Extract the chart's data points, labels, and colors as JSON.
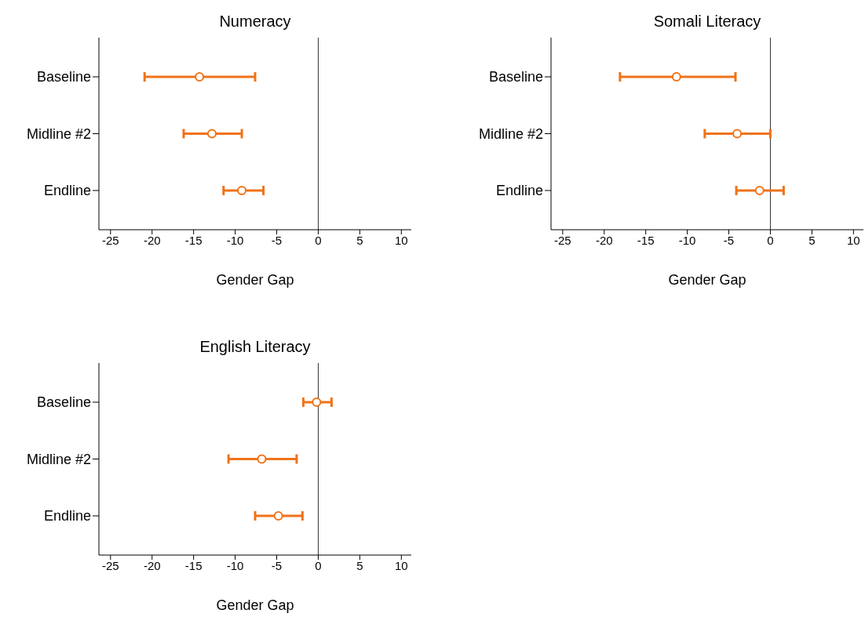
{
  "chart_data": [
    {
      "type": "scatter",
      "title": "Numeracy",
      "xlabel": "Gender Gap",
      "orientation": "horizontal",
      "categories": [
        "Baseline",
        "Midline #2",
        "Endline"
      ],
      "marker": "circle",
      "grid": false,
      "color": "#f07318",
      "values": [
        -14.3,
        -12.8,
        -9.2
      ],
      "errors": [
        [
          -20.9,
          -7.6
        ],
        [
          -16.2,
          -9.2
        ],
        [
          -11.4,
          -6.6
        ]
      ],
      "xlim": [
        -26.4,
        11.2
      ],
      "xticks": [
        -25,
        -20,
        -15,
        -10,
        -5,
        0,
        5,
        10
      ],
      "ref_lines": [
        {
          "axis": "x",
          "value": 0
        }
      ]
    },
    {
      "type": "scatter",
      "title": "Somali Literacy",
      "xlabel": "Gender Gap",
      "orientation": "horizontal",
      "categories": [
        "Baseline",
        "Midline #2",
        "Endline"
      ],
      "marker": "circle",
      "grid": false,
      "color": "#f07318",
      "values": [
        -11.3,
        -4.0,
        -1.3
      ],
      "errors": [
        [
          -18.1,
          -4.2
        ],
        [
          -7.9,
          0.0
        ],
        [
          -4.1,
          1.6
        ]
      ],
      "xlim": [
        -26.4,
        11.2
      ],
      "xticks": [
        -25,
        -20,
        -15,
        -10,
        -5,
        0,
        5,
        10
      ],
      "ref_lines": [
        {
          "axis": "x",
          "value": 0
        }
      ]
    },
    {
      "type": "scatter",
      "title": "English Literacy",
      "xlabel": "Gender Gap",
      "orientation": "horizontal",
      "categories": [
        "Baseline",
        "Midline #2",
        "Endline"
      ],
      "marker": "circle",
      "grid": false,
      "color": "#f07318",
      "values": [
        -0.2,
        -6.8,
        -4.8
      ],
      "errors": [
        [
          -1.8,
          1.6
        ],
        [
          -10.8,
          -2.6
        ],
        [
          -7.6,
          -1.9
        ]
      ],
      "xlim": [
        -26.4,
        11.2
      ],
      "xticks": [
        -25,
        -20,
        -15,
        -10,
        -5,
        0,
        5,
        10
      ],
      "ref_lines": [
        {
          "axis": "x",
          "value": 0
        }
      ]
    }
  ]
}
